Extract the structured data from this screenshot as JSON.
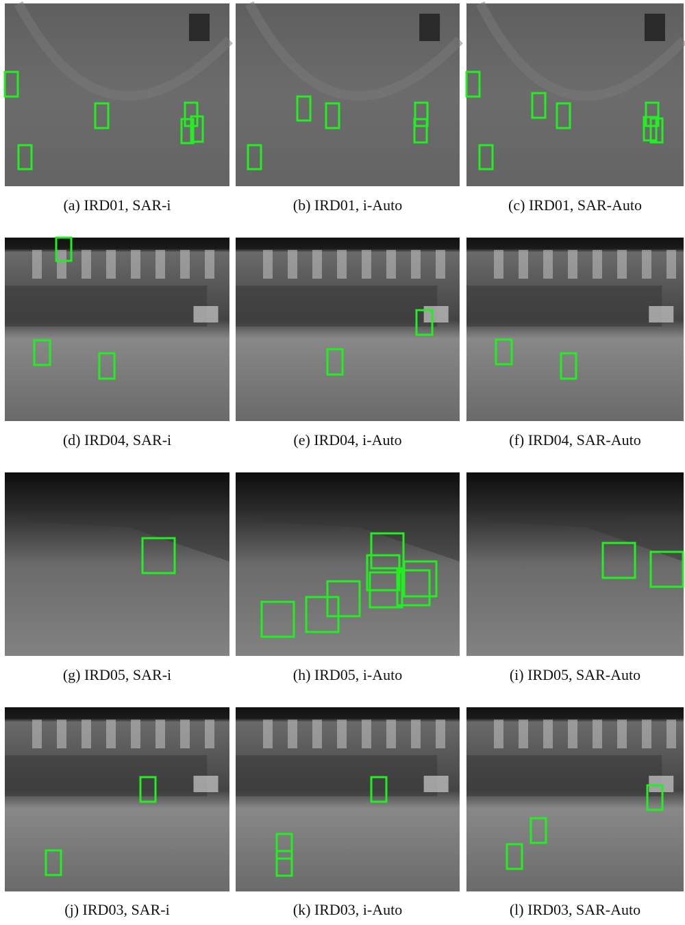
{
  "figure": {
    "panels": [
      {
        "caption": "(a) IRD01, SAR-i"
      },
      {
        "caption": "(b) IRD01, i-Auto"
      },
      {
        "caption": "(c) IRD01, SAR-Auto"
      },
      {
        "caption": "(d) IRD04, SAR-i"
      },
      {
        "caption": "(e) IRD04, i-Auto"
      },
      {
        "caption": "(f) IRD04, SAR-Auto"
      },
      {
        "caption": "(g) IRD05, SAR-i"
      },
      {
        "caption": "(h) IRD05, i-Auto"
      },
      {
        "caption": "(i) IRD05, SAR-Auto"
      },
      {
        "caption": "(j) IRD03, SAR-i"
      },
      {
        "caption": "(k) IRD03, i-Auto"
      },
      {
        "caption": "(l) IRD03, SAR-Auto"
      }
    ]
  }
}
